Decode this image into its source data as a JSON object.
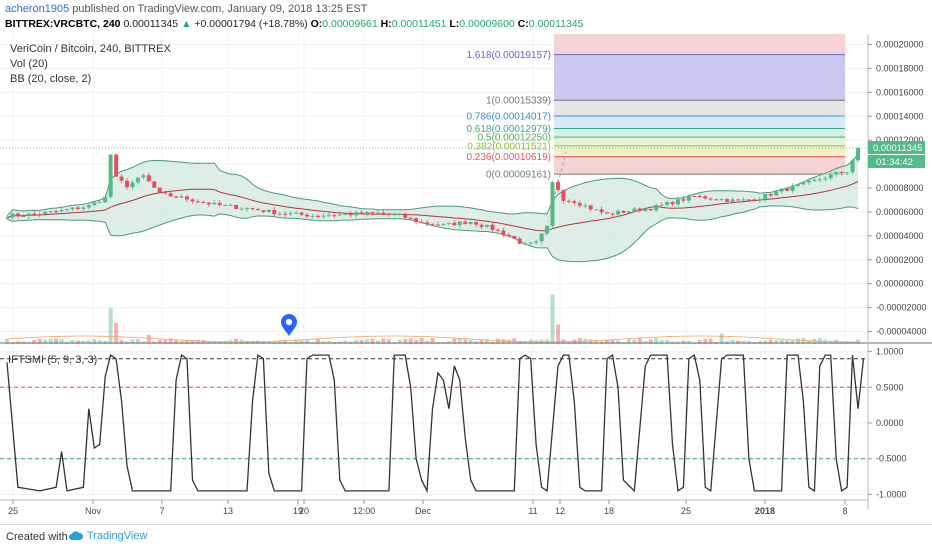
{
  "header": {
    "publisher": "acheron1905",
    "published_text": "published on TradingView.com, January 09, 2018 13:25 EST",
    "symbol": "BITTREX:VRCBTC, 240",
    "last": "0.00011345",
    "change": "+0.00001794 (+18.78%)",
    "o_label": "O:",
    "o_value": "0.00009661",
    "h_label": "H:",
    "h_value": "0.00011451",
    "l_label": "L:",
    "l_value": "0.00009600",
    "c_label": "C:",
    "c_value": "0.00011345"
  },
  "legend": {
    "title": "VeriCoin / Bitcoin, 240, BITTREX",
    "vol": "Vol (20)",
    "bb": "BB (20, close, 2)",
    "ifts": "IFTSMI (5, 9, 3, 3)"
  },
  "price_badges": {
    "last": "0.00011345",
    "countdown": "01:34:42"
  },
  "footer": {
    "created_with": "Created with",
    "brand": "TradingView"
  },
  "colors": {
    "up": "#53b987",
    "down": "#eb4d5c",
    "bb_fill": "#cfe7dd",
    "bb_band": "#4a9a7c",
    "bb_basis": "#b2373b",
    "ifts_line": "#333333",
    "brand": "#2a9fd6",
    "marker": "#2962ff"
  },
  "chart_data": [
    {
      "type": "candlestick",
      "title": "VeriCoin / Bitcoin, 240, BITTREX",
      "x_tick_labels": [
        "25",
        "Nov",
        "7",
        "13",
        "19",
        "20",
        "12:00",
        "Dec",
        "11",
        "12",
        "18",
        "25",
        "2018",
        "8"
      ],
      "y_ticks": [
        "0.00020000",
        "0.00018000",
        "0.00016000",
        "0.00014000",
        "0.00012000",
        "0.00010000",
        "0.00008000",
        "0.00006000",
        "0.00004000",
        "0.00002000",
        "0.00000000",
        "-0.00002000",
        "-0.00004000"
      ],
      "ylim": [
        -4e-05,
        0.0002
      ],
      "close_path": [
        [
          0,
          5.7e-05
        ],
        [
          5,
          5.8e-05
        ],
        [
          10,
          6.1e-05
        ],
        [
          15,
          6.5e-05
        ],
        [
          18,
          7.2e-05
        ],
        [
          19,
          0.000108
        ],
        [
          20,
          8.8e-05
        ],
        [
          22,
          8.2e-05
        ],
        [
          25,
          9e-05
        ],
        [
          28,
          7.5e-05
        ],
        [
          33,
          7.1e-05
        ],
        [
          38,
          6.6e-05
        ],
        [
          44,
          6.3e-05
        ],
        [
          50,
          5.9e-05
        ],
        [
          56,
          5.7e-05
        ],
        [
          62,
          5.8e-05
        ],
        [
          68,
          5.9e-05
        ],
        [
          72,
          5.7e-05
        ],
        [
          76,
          5.1e-05
        ],
        [
          80,
          4.9e-05
        ],
        [
          85,
          5.2e-05
        ],
        [
          89,
          4.6e-05
        ],
        [
          92,
          4e-05
        ],
        [
          95,
          3.2e-05
        ],
        [
          97,
          3.4e-05
        ],
        [
          99,
          4.7e-05
        ],
        [
          100,
          8.4e-05
        ],
        [
          101,
          7.9e-05
        ],
        [
          102,
          7.1e-05
        ],
        [
          104,
          6.9e-05
        ],
        [
          107,
          6.3e-05
        ],
        [
          110,
          5.8e-05
        ],
        [
          114,
          6.1e-05
        ],
        [
          118,
          6.3e-05
        ],
        [
          122,
          6.8e-05
        ],
        [
          126,
          7.3e-05
        ],
        [
          130,
          7.1e-05
        ],
        [
          134,
          6.9e-05
        ],
        [
          138,
          7.2e-05
        ],
        [
          142,
          7.8e-05
        ],
        [
          146,
          8.3e-05
        ],
        [
          150,
          8.9e-05
        ],
        [
          152,
          9.2e-05
        ],
        [
          154,
          9.4e-05
        ],
        [
          156,
          0.000113
        ]
      ],
      "series": [
        {
          "name": "Vol (20)",
          "peaks": [
            [
              19,
              24
            ],
            [
              20,
              14
            ],
            [
              26,
              6
            ],
            [
              100,
              33
            ],
            [
              101,
              13
            ],
            [
              131,
              7
            ],
            [
              156,
              3
            ]
          ]
        },
        {
          "name": "BB (20, close, 2)"
        }
      ],
      "fibonacci": [
        {
          "label": "1.618(0.00019157)",
          "value": 0.00019157,
          "color": "#6b5fd0"
        },
        {
          "label": "1(0.00015339)",
          "value": 0.00015339,
          "color": "#777777"
        },
        {
          "label": "0.786(0.00014017)",
          "value": 0.00014017,
          "color": "#3a8fc5"
        },
        {
          "label": "0.618(0.00012979)",
          "value": 0.00012979,
          "color": "#3aa98a"
        },
        {
          "label": "0.5(0.00012250)",
          "value": 0.0001225,
          "color": "#4caf50"
        },
        {
          "label": "0.382(0.00011521)",
          "value": 0.00011521,
          "color": "#9abd3a"
        },
        {
          "label": "0.236(0.00010619)",
          "value": 0.00010619,
          "color": "#e05560"
        },
        {
          "label": "0(0.00009161)",
          "value": 9.161e-05,
          "color": "#777777"
        }
      ]
    },
    {
      "type": "line",
      "title": "IFTSMI (5, 9, 3, 3)",
      "y_ticks": [
        "1.0000",
        "0.5000",
        "0.0000",
        "-0.5000",
        "-1.0000"
      ],
      "ylim": [
        -1.05,
        1.05
      ],
      "levels": [
        {
          "value": 0.9,
          "color": "#333333"
        },
        {
          "value": 0.5,
          "color": "#e05560"
        },
        {
          "value": -0.5,
          "color": "#3a9a6a"
        }
      ],
      "series": [
        {
          "name": "IFTSMI (5, 9, 3, 3)",
          "values": [
            [
              0,
              0.85
            ],
            [
              2,
              -0.9
            ],
            [
              6,
              -0.95
            ],
            [
              9,
              -0.9
            ],
            [
              10,
              -0.4
            ],
            [
              11,
              -0.95
            ],
            [
              14,
              -0.9
            ],
            [
              15,
              0.2
            ],
            [
              16,
              -0.35
            ],
            [
              17,
              -0.3
            ],
            [
              18,
              0.65
            ],
            [
              19,
              0.95
            ],
            [
              20,
              0.9
            ],
            [
              21,
              0.3
            ],
            [
              22,
              -0.6
            ],
            [
              23,
              -0.95
            ],
            [
              30,
              -0.95
            ],
            [
              31,
              0.6
            ],
            [
              32,
              0.95
            ],
            [
              33,
              0.9
            ],
            [
              34,
              -0.8
            ],
            [
              35,
              -0.95
            ],
            [
              44,
              -0.95
            ],
            [
              45,
              0.3
            ],
            [
              46,
              0.95
            ],
            [
              47,
              0.9
            ],
            [
              48,
              -0.7
            ],
            [
              49,
              -0.95
            ],
            [
              54,
              -0.95
            ],
            [
              55,
              0.9
            ],
            [
              56,
              0.95
            ],
            [
              59,
              0.95
            ],
            [
              60,
              0.6
            ],
            [
              61,
              -0.8
            ],
            [
              62,
              -0.95
            ],
            [
              70,
              -0.95
            ],
            [
              71,
              0.95
            ],
            [
              73,
              0.95
            ],
            [
              74,
              0.5
            ],
            [
              75,
              -0.5
            ],
            [
              76,
              -0.8
            ],
            [
              77,
              -0.95
            ],
            [
              78,
              0.2
            ],
            [
              79,
              0.7
            ],
            [
              80,
              0.6
            ],
            [
              81,
              0.2
            ],
            [
              82,
              0.8
            ],
            [
              83,
              0.6
            ],
            [
              84,
              -0.2
            ],
            [
              85,
              -0.8
            ],
            [
              86,
              -0.95
            ],
            [
              93,
              -0.95
            ],
            [
              94,
              0.9
            ],
            [
              95,
              0.95
            ],
            [
              96,
              0.9
            ],
            [
              97,
              -0.3
            ],
            [
              98,
              -0.9
            ],
            [
              99,
              -0.95
            ],
            [
              101,
              0.8
            ],
            [
              102,
              0.95
            ],
            [
              103,
              0.95
            ],
            [
              104,
              0.3
            ],
            [
              105,
              -0.9
            ],
            [
              106,
              -0.95
            ],
            [
              109,
              -0.95
            ],
            [
              110,
              0.9
            ],
            [
              111,
              0.95
            ],
            [
              112,
              0.5
            ],
            [
              113,
              -0.8
            ],
            [
              115,
              -0.95
            ],
            [
              117,
              0.8
            ],
            [
              118,
              0.95
            ],
            [
              121,
              0.95
            ],
            [
              122,
              -0.3
            ],
            [
              123,
              -0.95
            ],
            [
              124,
              -0.9
            ],
            [
              125,
              0.9
            ],
            [
              126,
              0.95
            ],
            [
              127,
              0.6
            ],
            [
              128,
              -0.9
            ],
            [
              129,
              -0.95
            ],
            [
              131,
              0.9
            ],
            [
              132,
              0.95
            ],
            [
              135,
              0.95
            ],
            [
              136,
              -0.5
            ],
            [
              137,
              -0.95
            ],
            [
              142,
              -0.95
            ],
            [
              143,
              0.95
            ],
            [
              145,
              0.95
            ],
            [
              146,
              0.3
            ],
            [
              147,
              -0.9
            ],
            [
              148,
              -0.95
            ],
            [
              149,
              0.8
            ],
            [
              150,
              0.95
            ],
            [
              151,
              0.95
            ],
            [
              152,
              -0.5
            ],
            [
              153,
              -0.95
            ],
            [
              154,
              -0.9
            ],
            [
              155,
              0.95
            ],
            [
              156,
              0.2
            ],
            [
              157,
              0.9
            ]
          ]
        }
      ]
    }
  ]
}
